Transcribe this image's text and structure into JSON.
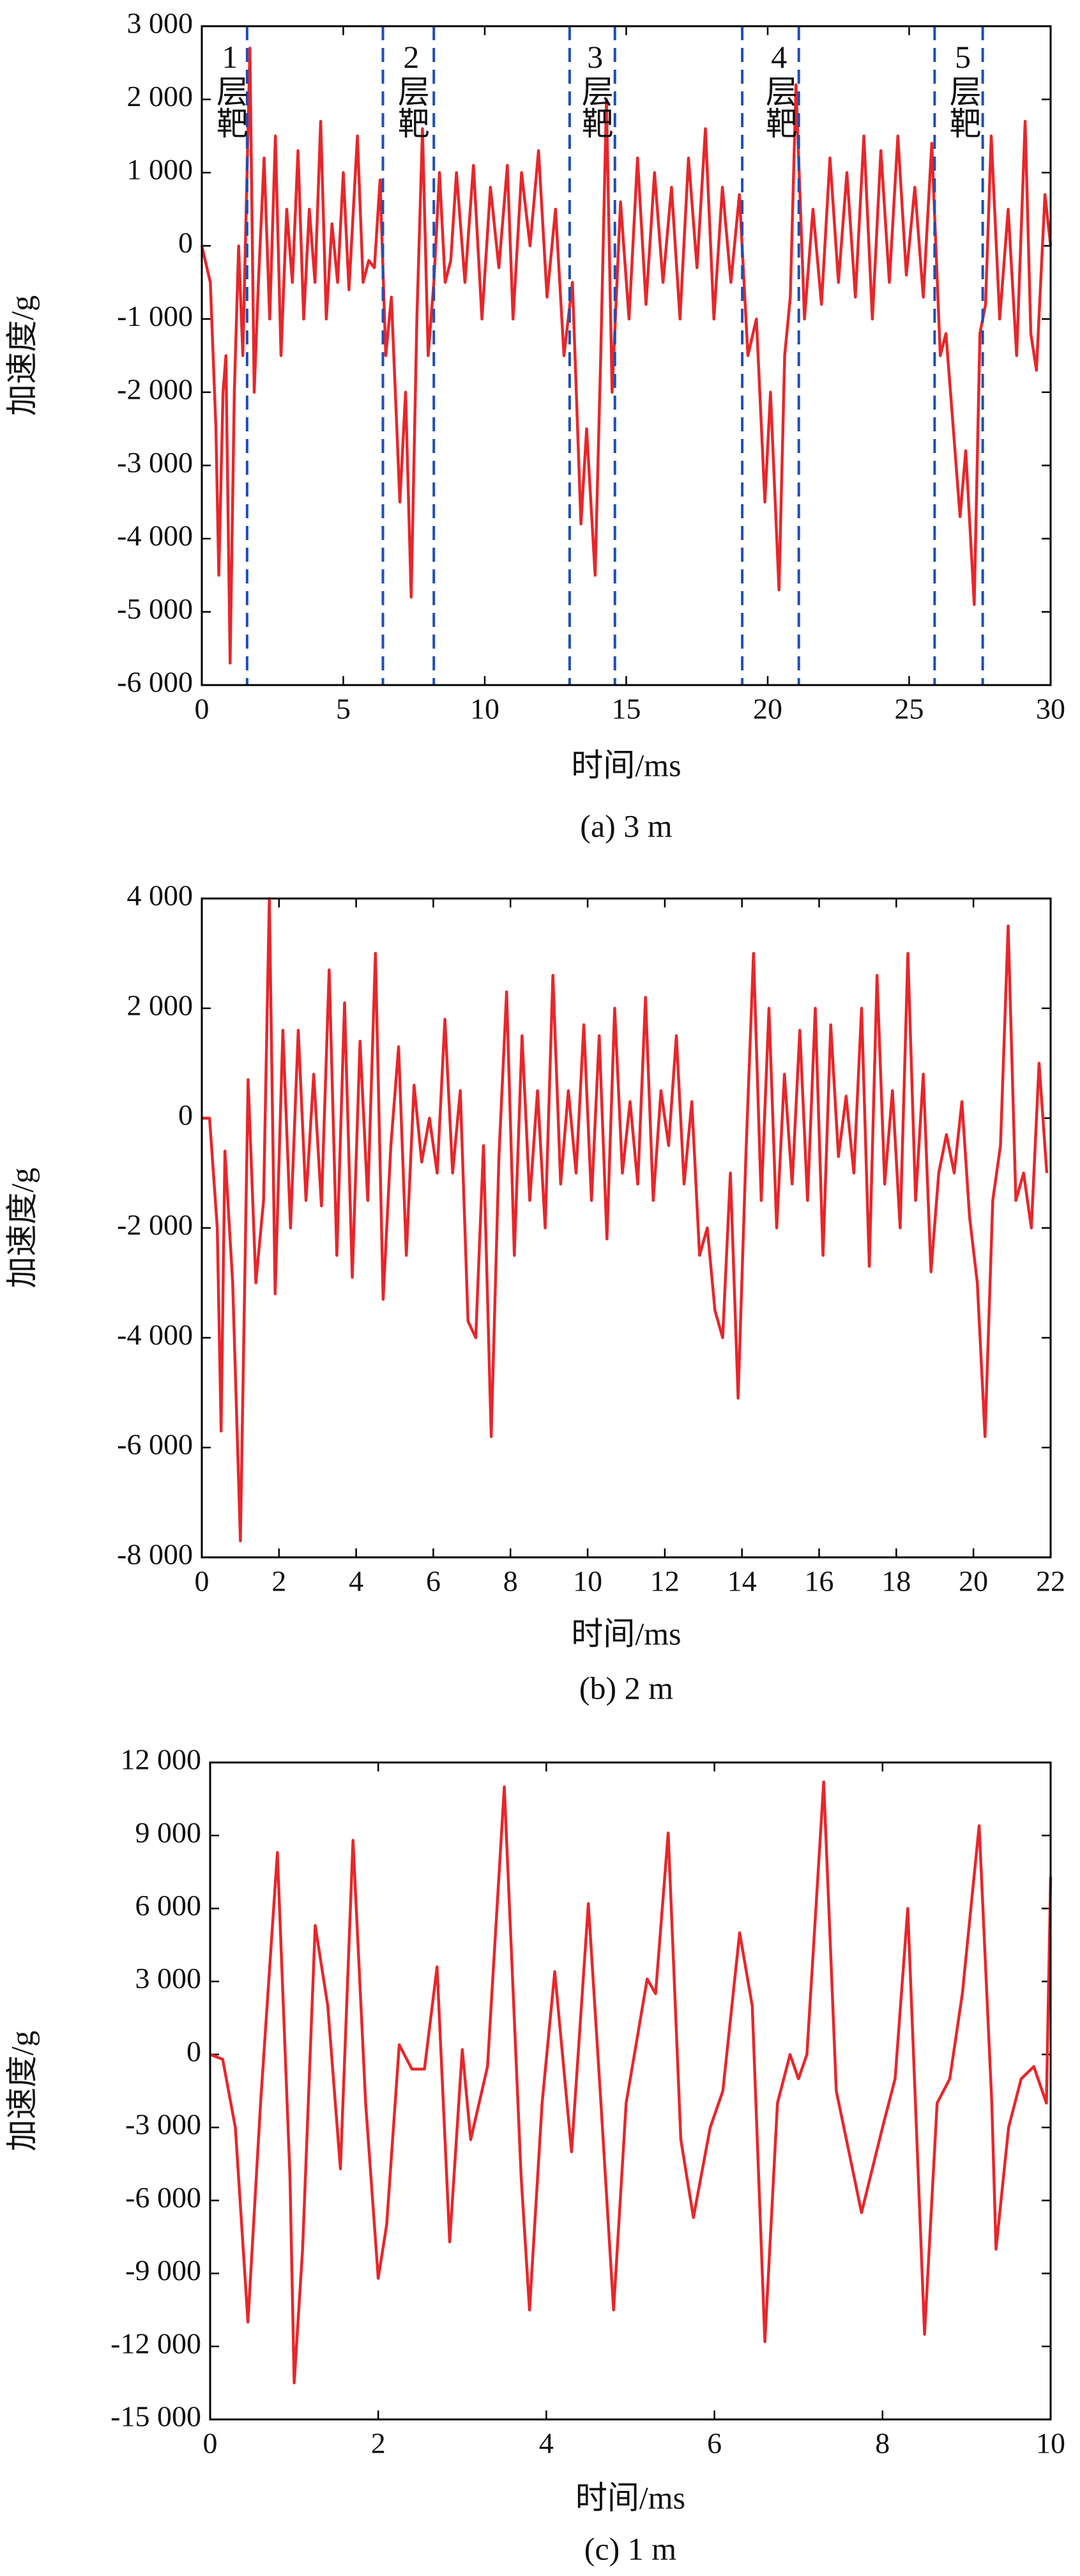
{
  "chart_data": [
    {
      "type": "line",
      "xlabel": "时间/ms",
      "ylabel": "加速度/g",
      "caption": "(a) 3 m",
      "color": "#e8262a",
      "xlim": [
        0,
        30
      ],
      "xticks": [
        0,
        5,
        10,
        15,
        20,
        25,
        30
      ],
      "ylim": [
        -6000,
        3000
      ],
      "yticks": [
        {
          "value": -6000,
          "label": "-6 000"
        },
        {
          "value": -5000,
          "label": "-5 000"
        },
        {
          "value": -4000,
          "label": "-4 000"
        },
        {
          "value": -3000,
          "label": "-3 000"
        },
        {
          "value": -2000,
          "label": "-2 000"
        },
        {
          "value": -1000,
          "label": "-1 000"
        },
        0,
        {
          "value": 1000,
          "label": "1 000"
        },
        {
          "value": 2000,
          "label": "2 000"
        },
        {
          "value": 3000,
          "label": "3 000"
        }
      ],
      "x": [
        0,
        0.3,
        0.5,
        0.6,
        0.75,
        0.85,
        1.0,
        1.15,
        1.3,
        1.45,
        1.7,
        1.85,
        2.0,
        2.2,
        2.4,
        2.6,
        2.8,
        3.0,
        3.2,
        3.4,
        3.6,
        3.8,
        4.0,
        4.2,
        4.4,
        4.6,
        4.8,
        5.0,
        5.2,
        5.5,
        5.7,
        5.9,
        6.1,
        6.3,
        6.5,
        6.7,
        7.0,
        7.2,
        7.4,
        7.6,
        7.8,
        8.0,
        8.2,
        8.4,
        8.6,
        8.8,
        9.0,
        9.3,
        9.6,
        9.9,
        10.2,
        10.5,
        10.8,
        11.0,
        11.3,
        11.6,
        11.9,
        12.2,
        12.5,
        12.8,
        13.1,
        13.4,
        13.6,
        13.9,
        14.1,
        14.3,
        14.5,
        14.8,
        15.1,
        15.4,
        15.7,
        16.0,
        16.3,
        16.6,
        16.9,
        17.2,
        17.5,
        17.8,
        18.1,
        18.4,
        18.7,
        19.0,
        19.3,
        19.6,
        19.9,
        20.1,
        20.4,
        20.6,
        20.8,
        21.0,
        21.3,
        21.6,
        21.9,
        22.2,
        22.5,
        22.8,
        23.1,
        23.4,
        23.7,
        24.0,
        24.3,
        24.6,
        24.9,
        25.2,
        25.5,
        25.8,
        26.1,
        26.3,
        26.5,
        26.8,
        27.0,
        27.3,
        27.5,
        27.7,
        27.9,
        28.2,
        28.5,
        28.8,
        29.1,
        29.3,
        29.5,
        29.8,
        30.0
      ],
      "values": [
        0,
        -500,
        -2500,
        -4500,
        -2000,
        -1500,
        -5700,
        -2000,
        0,
        -1500,
        2700,
        -2000,
        -500,
        1200,
        -1000,
        1500,
        -1500,
        500,
        -500,
        1300,
        -1000,
        500,
        -500,
        1700,
        -1000,
        300,
        -500,
        1000,
        -600,
        1500,
        -500,
        -200,
        -300,
        900,
        -1500,
        -700,
        -3500,
        -2000,
        -4800,
        -1000,
        1600,
        -1500,
        -500,
        1000,
        -500,
        -200,
        1000,
        -500,
        1100,
        -1000,
        800,
        -300,
        1100,
        -1000,
        1000,
        0,
        1300,
        -700,
        500,
        -1500,
        -500,
        -3800,
        -2500,
        -4500,
        -1500,
        2000,
        -2000,
        600,
        -1000,
        1200,
        -800,
        1000,
        -500,
        800,
        -1000,
        1200,
        -300,
        1600,
        -1000,
        800,
        -500,
        700,
        -1500,
        -1000,
        -3500,
        -2000,
        -4700,
        -1500,
        -700,
        2200,
        -1000,
        500,
        -800,
        1200,
        -500,
        1000,
        -700,
        1500,
        -1000,
        1300,
        -500,
        1500,
        -400,
        800,
        -700,
        1400,
        -1500,
        -1200,
        -2200,
        -3700,
        -2800,
        -4900,
        -1200,
        -800,
        1500,
        -1000,
        500,
        -1500,
        1700,
        -1200,
        -1700,
        700,
        0
      ],
      "vline_color": "#1f4fb4",
      "vlines": [
        1.6,
        6.4,
        8.2,
        13.0,
        14.6,
        19.1,
        21.1,
        25.9,
        27.6
      ],
      "annotations": [
        {
          "text": "1层靶",
          "x": 0.99
        },
        {
          "text": "2层靶",
          "x": 7.4
        },
        {
          "text": "3层靶",
          "x": 13.9
        },
        {
          "text": "4层靶",
          "x": 20.4
        },
        {
          "text": "5层靶",
          "x": 26.9
        }
      ]
    },
    {
      "type": "line",
      "xlabel": "时间/ms",
      "ylabel": "加速度/g",
      "caption": "(b) 2 m",
      "color": "#e8262a",
      "xlim": [
        0,
        22
      ],
      "xticks": [
        0,
        2,
        4,
        6,
        8,
        10,
        12,
        14,
        16,
        18,
        20,
        22
      ],
      "ylim": [
        -8000,
        4000
      ],
      "yticks": [
        {
          "value": -8000,
          "label": "-8 000"
        },
        {
          "value": -6000,
          "label": "-6 000"
        },
        {
          "value": -4000,
          "label": "-4 000"
        },
        {
          "value": -2000,
          "label": "-2 000"
        },
        0,
        {
          "value": 2000,
          "label": "2 000"
        },
        {
          "value": 4000,
          "label": "4 000"
        }
      ],
      "x": [
        0,
        0.2,
        0.4,
        0.5,
        0.6,
        0.8,
        1.0,
        1.2,
        1.4,
        1.6,
        1.75,
        1.9,
        2.1,
        2.3,
        2.5,
        2.7,
        2.9,
        3.1,
        3.3,
        3.5,
        3.7,
        3.9,
        4.1,
        4.3,
        4.5,
        4.7,
        4.9,
        5.1,
        5.3,
        5.5,
        5.7,
        5.9,
        6.1,
        6.3,
        6.5,
        6.7,
        6.9,
        7.1,
        7.3,
        7.5,
        7.7,
        7.9,
        8.1,
        8.3,
        8.5,
        8.7,
        8.9,
        9.1,
        9.3,
        9.5,
        9.7,
        9.9,
        10.1,
        10.3,
        10.5,
        10.7,
        10.9,
        11.1,
        11.3,
        11.5,
        11.7,
        11.9,
        12.1,
        12.3,
        12.5,
        12.7,
        12.9,
        13.1,
        13.3,
        13.5,
        13.7,
        13.9,
        14.1,
        14.3,
        14.5,
        14.7,
        14.9,
        15.1,
        15.3,
        15.5,
        15.7,
        15.9,
        16.1,
        16.3,
        16.5,
        16.7,
        16.9,
        17.1,
        17.3,
        17.5,
        17.7,
        17.9,
        18.1,
        18.3,
        18.5,
        18.7,
        18.9,
        19.1,
        19.3,
        19.5,
        19.7,
        19.9,
        20.1,
        20.3,
        20.5,
        20.7,
        20.9,
        21.1,
        21.3,
        21.5,
        21.7,
        21.9
      ],
      "values": [
        0,
        0,
        -2000,
        -5700,
        -600,
        -3000,
        -7700,
        700,
        -3000,
        -1500,
        4000,
        -3200,
        1600,
        -2000,
        1600,
        -1500,
        800,
        -1600,
        2700,
        -2500,
        2100,
        -2900,
        1400,
        -1500,
        3000,
        -3300,
        -500,
        1300,
        -2500,
        600,
        -800,
        0,
        -1000,
        1800,
        -1000,
        500,
        -3700,
        -4000,
        -500,
        -5800,
        -700,
        2300,
        -2500,
        1500,
        -1500,
        500,
        -2000,
        2600,
        -1200,
        500,
        -1000,
        1700,
        -1500,
        1500,
        -2200,
        2000,
        -1000,
        300,
        -1200,
        2200,
        -1500,
        500,
        -500,
        1500,
        -1200,
        300,
        -2500,
        -2000,
        -3500,
        -4000,
        -1000,
        -5100,
        -700,
        3000,
        -1500,
        2000,
        -2000,
        800,
        -1200,
        1600,
        -1500,
        2000,
        -2500,
        1700,
        -700,
        400,
        -1000,
        2000,
        -2700,
        2600,
        -1200,
        500,
        -2000,
        3000,
        -1500,
        800,
        -2800,
        -1000,
        -300,
        -1000,
        300,
        -1800,
        -3000,
        -5800,
        -1500,
        -500,
        3500,
        -1500,
        -1000,
        -2000,
        1000,
        -1000
      ]
    },
    {
      "type": "line",
      "xlabel": "时间/ms",
      "ylabel": "加速度/g",
      "caption": "(c) 1 m",
      "color": "#e8262a",
      "xlim": [
        0,
        10
      ],
      "xticks": [
        0,
        2,
        4,
        6,
        8,
        10
      ],
      "ylim": [
        -15000,
        12000
      ],
      "yticks": [
        {
          "value": -15000,
          "label": "-15 000"
        },
        {
          "value": -12000,
          "label": "-12 000"
        },
        {
          "value": -9000,
          "label": "-9 000"
        },
        {
          "value": -6000,
          "label": "-6 000"
        },
        {
          "value": -3000,
          "label": "-3 000"
        },
        0,
        {
          "value": 3000,
          "label": "3 000"
        },
        {
          "value": 6000,
          "label": "6 000"
        },
        {
          "value": 9000,
          "label": "9 000"
        },
        {
          "value": 12000,
          "label": "12 000"
        }
      ],
      "x": [
        0,
        0.15,
        0.3,
        0.45,
        0.6,
        0.8,
        0.95,
        1.0,
        1.1,
        1.25,
        1.4,
        1.55,
        1.7,
        1.85,
        2.0,
        2.1,
        2.25,
        2.4,
        2.55,
        2.7,
        2.85,
        3.0,
        3.1,
        3.3,
        3.5,
        3.7,
        3.8,
        3.95,
        4.1,
        4.3,
        4.5,
        4.65,
        4.8,
        4.95,
        5.2,
        5.3,
        5.45,
        5.6,
        5.75,
        5.95,
        6.1,
        6.3,
        6.45,
        6.6,
        6.75,
        6.9,
        7.0,
        7.1,
        7.3,
        7.45,
        7.6,
        7.75,
        8.0,
        8.15,
        8.3,
        8.5,
        8.65,
        8.8,
        8.95,
        9.15,
        9.3,
        9.35,
        9.5,
        9.65,
        9.8,
        9.95,
        10.0
      ],
      "values": [
        0,
        -200,
        -3000,
        -11000,
        -2000,
        8300,
        -5000,
        -13500,
        -8000,
        5300,
        2000,
        -4700,
        8800,
        -2000,
        -9200,
        -7000,
        400,
        -600,
        -600,
        3600,
        -7700,
        200,
        -3500,
        -500,
        11000,
        -5000,
        -10500,
        -2000,
        3400,
        -4000,
        6200,
        -2000,
        -10500,
        -2000,
        3100,
        2500,
        9100,
        -3500,
        -6700,
        -3000,
        -1500,
        5000,
        2000,
        -11800,
        -2000,
        0,
        -1000,
        0,
        11200,
        -1500,
        -4000,
        -6500,
        -3000,
        -1000,
        6000,
        -11500,
        -2000,
        -1000,
        2500,
        9400,
        -2000,
        -8000,
        -3000,
        -1000,
        -500,
        -2000,
        7300
      ]
    }
  ]
}
